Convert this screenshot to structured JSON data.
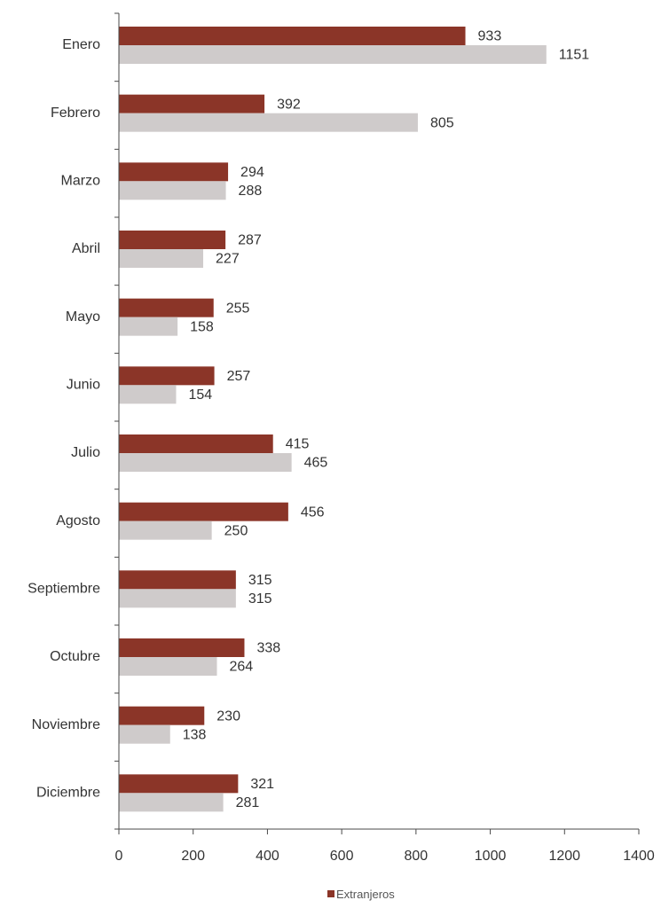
{
  "chart_data": {
    "type": "bar",
    "orientation": "horizontal",
    "title": "",
    "xlabel": "",
    "ylabel": "",
    "xlim": [
      0,
      1400
    ],
    "x_ticks": [
      0,
      200,
      400,
      600,
      800,
      1000,
      1200,
      1400
    ],
    "categories": [
      "Enero",
      "Febrero",
      "Marzo",
      "Abril",
      "Mayo",
      "Junio",
      "Julio",
      "Agosto",
      "Septiembre",
      "Octubre",
      "Noviembre",
      "Diciembre"
    ],
    "series": [
      {
        "name": "Extranjeros",
        "color": "#8b3528",
        "values": [
          933,
          392,
          294,
          287,
          255,
          257,
          415,
          456,
          315,
          338,
          230,
          321
        ]
      },
      {
        "color": "#cfcbcb",
        "values": [
          1151,
          805,
          288,
          227,
          158,
          154,
          465,
          250,
          315,
          264,
          138,
          281
        ]
      }
    ],
    "grid": false,
    "legend": {
      "position": "bottom",
      "entries": [
        "Extranjeros"
      ]
    }
  }
}
